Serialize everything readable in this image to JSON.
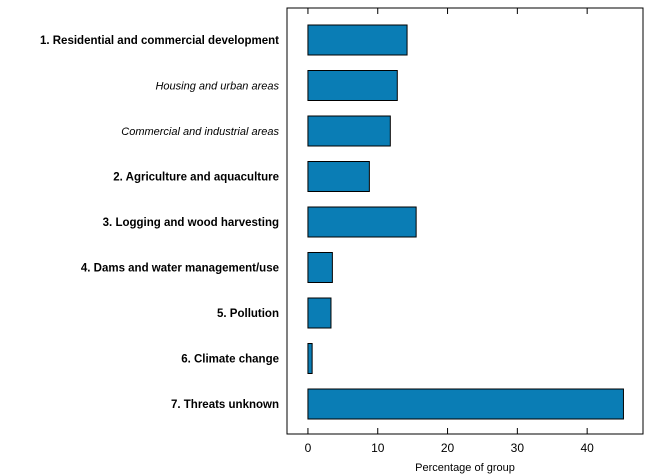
{
  "chart_data": {
    "type": "bar",
    "orientation": "horizontal",
    "categories": [
      "1. Residential and commercial development",
      "Housing and urban areas",
      "Commercial and industrial areas",
      "2. Agriculture and aquaculture",
      "3. Logging and wood harvesting",
      "4. Dams and water management/use",
      "5. Pollution",
      "6. Climate change",
      "7. Threats unknown"
    ],
    "category_styles": [
      "bold",
      "italic",
      "italic",
      "bold",
      "bold",
      "bold",
      "bold",
      "bold",
      "bold"
    ],
    "values": [
      14.2,
      12.8,
      11.8,
      8.8,
      15.5,
      3.5,
      3.3,
      0.6,
      45.2
    ],
    "xlabel": "Percentage of group",
    "ylabel": "",
    "xlim": [
      -3,
      48
    ],
    "xticks": [
      0,
      10,
      20,
      30,
      40
    ],
    "grid": false,
    "bar_color": "#0a7db5",
    "bar_edge_color": "#000000"
  }
}
